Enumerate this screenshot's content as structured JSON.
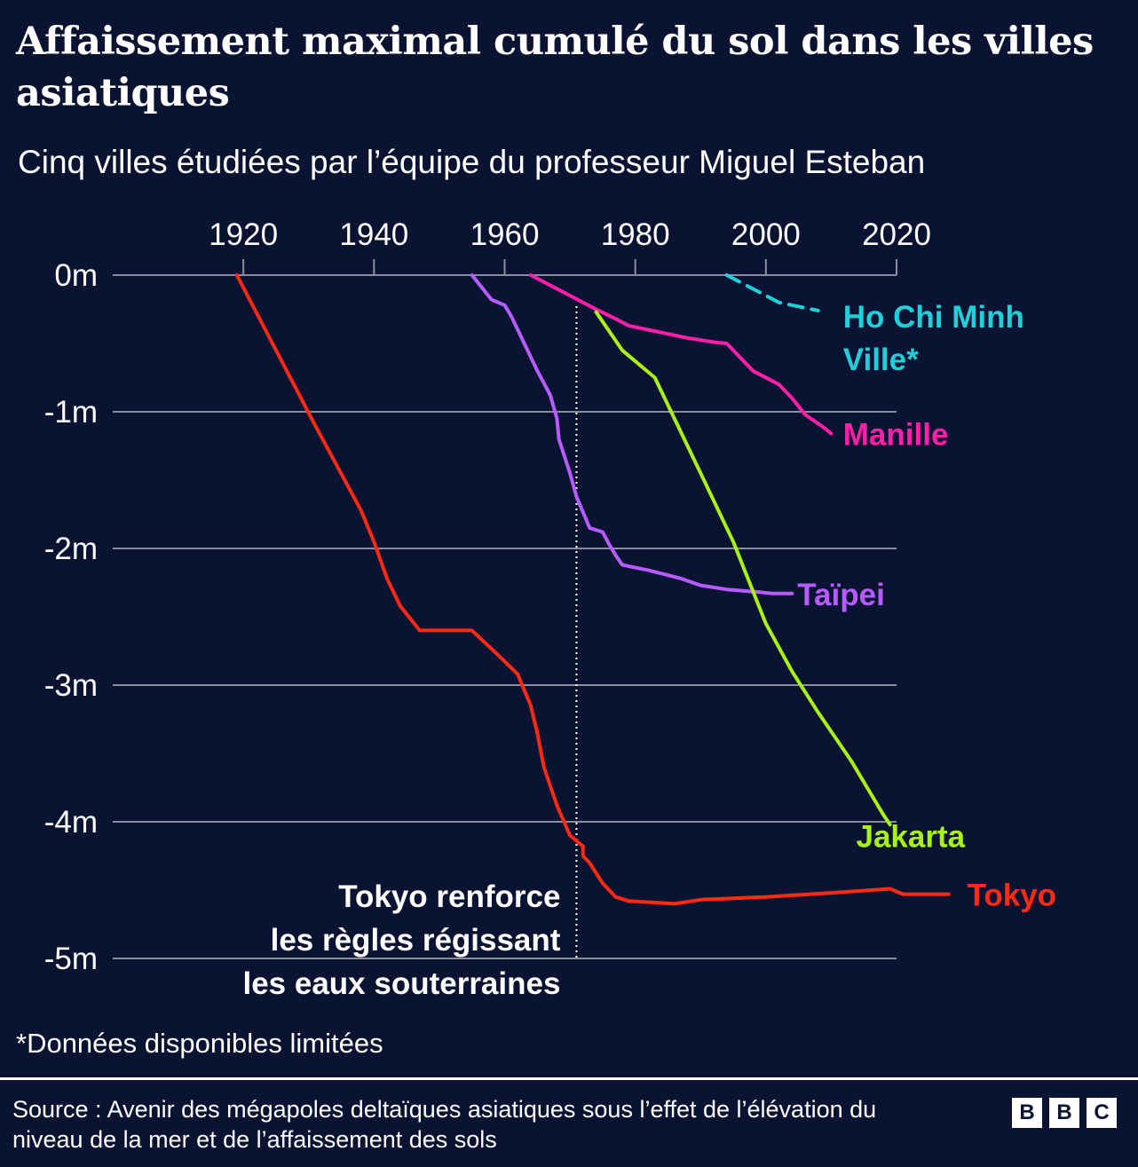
{
  "title": "Affaissement maximal cumulé du sol dans les villes asiatiques",
  "subtitle": "Cinq villes étudiées par l’équipe du professeur Miguel Esteban",
  "footnote": "*Données disponibles limitées",
  "source": "Source : Avenir des mégapoles deltaïques asiatiques sous l’effet de l’élévation du niveau de la mer et de l’affaissement des sols",
  "brand": [
    "B",
    "B",
    "C"
  ],
  "colors": {
    "background": "#0a1432",
    "grid": "#8a8f9e",
    "text": "#ffffff",
    "tokyo": "#ff2a14",
    "taipei": "#b65cff",
    "manille": "#ff1fa8",
    "jakarta": "#a8f21a",
    "hcm": "#1fd0da"
  },
  "chart_data": {
    "type": "line",
    "xlim": [
      1920,
      2020
    ],
    "ylim": [
      -5,
      0
    ],
    "x_ticks": [
      1920,
      1940,
      1960,
      1980,
      2000,
      2020
    ],
    "x_tick_labels": [
      "1920",
      "1940",
      "1960",
      "1980",
      "2000",
      "2020"
    ],
    "y_ticks": [
      0,
      -1,
      -2,
      -3,
      -4,
      -5
    ],
    "y_tick_labels": [
      "0m",
      "-1m",
      "-2m",
      "-3m",
      "-4m",
      "-5m"
    ],
    "grid": true,
    "annotation": {
      "x": 1971,
      "lines": [
        "Tokyo renforce",
        "les règles régissant",
        "les eaux souterraines"
      ]
    },
    "series": [
      {
        "name": "Tokyo",
        "color_key": "tokyo",
        "dashed": false,
        "label_lines": [
          "Tokyo"
        ],
        "points": [
          [
            1919,
            0
          ],
          [
            1925,
            -0.55
          ],
          [
            1931,
            -1.1
          ],
          [
            1938,
            -1.72
          ],
          [
            1940,
            -1.95
          ],
          [
            1942,
            -2.22
          ],
          [
            1944,
            -2.42
          ],
          [
            1947,
            -2.6
          ],
          [
            1955,
            -2.6
          ],
          [
            1959,
            -2.78
          ],
          [
            1962,
            -2.92
          ],
          [
            1964,
            -3.15
          ],
          [
            1965,
            -3.35
          ],
          [
            1966,
            -3.6
          ],
          [
            1968,
            -3.88
          ],
          [
            1970,
            -4.1
          ],
          [
            1972,
            -4.18
          ],
          [
            1972,
            -4.25
          ],
          [
            1973,
            -4.3
          ],
          [
            1975,
            -4.45
          ],
          [
            1977,
            -4.55
          ],
          [
            1979,
            -4.58
          ],
          [
            1986,
            -4.6
          ],
          [
            1990,
            -4.57
          ],
          [
            2000,
            -4.55
          ],
          [
            2010,
            -4.52
          ],
          [
            2019,
            -4.49
          ],
          [
            2021,
            -4.53
          ],
          [
            2028,
            -4.53
          ]
        ],
        "label_pos": [
          2030,
          -4.53
        ]
      },
      {
        "name": "Taïpei",
        "color_key": "taipei",
        "dashed": false,
        "label_lines": [
          "Taïpei"
        ],
        "points": [
          [
            1955,
            0
          ],
          [
            1957,
            -0.12
          ],
          [
            1958,
            -0.18
          ],
          [
            1960,
            -0.22
          ],
          [
            1961,
            -0.3
          ],
          [
            1963,
            -0.5
          ],
          [
            1965,
            -0.7
          ],
          [
            1967,
            -0.88
          ],
          [
            1968,
            -1.05
          ],
          [
            1968.3,
            -1.2
          ],
          [
            1970,
            -1.45
          ],
          [
            1971,
            -1.62
          ],
          [
            1973,
            -1.85
          ],
          [
            1975,
            -1.88
          ],
          [
            1976,
            -1.97
          ],
          [
            1977,
            -2.05
          ],
          [
            1978,
            -2.12
          ],
          [
            1982,
            -2.16
          ],
          [
            1987,
            -2.22
          ],
          [
            1990,
            -2.27
          ],
          [
            1994,
            -2.3
          ],
          [
            1999,
            -2.32
          ],
          [
            2001,
            -2.33
          ],
          [
            2004,
            -2.33
          ]
        ],
        "label_pos": [
          2004,
          -2.33
        ]
      },
      {
        "name": "Manille",
        "color_key": "manille",
        "dashed": false,
        "label_lines": [
          "Manille"
        ],
        "points": [
          [
            1964,
            0
          ],
          [
            1970,
            -0.15
          ],
          [
            1974,
            -0.25
          ],
          [
            1977,
            -0.32
          ],
          [
            1979,
            -0.37
          ],
          [
            1984,
            -0.42
          ],
          [
            1988,
            -0.46
          ],
          [
            1992,
            -0.49
          ],
          [
            1994,
            -0.5
          ],
          [
            1996,
            -0.6
          ],
          [
            1998,
            -0.7
          ],
          [
            2002,
            -0.8
          ],
          [
            2004,
            -0.9
          ],
          [
            2006,
            -1.02
          ],
          [
            2009,
            -1.12
          ],
          [
            2010,
            -1.16
          ]
        ],
        "label_pos": [
          2011,
          -1.16
        ]
      },
      {
        "name": "Jakarta",
        "color_key": "jakarta",
        "dashed": false,
        "label_lines": [
          "Jakarta"
        ],
        "points": [
          [
            1974,
            -0.27
          ],
          [
            1978,
            -0.55
          ],
          [
            1983,
            -0.75
          ],
          [
            1986,
            -1.05
          ],
          [
            1990,
            -1.45
          ],
          [
            1995,
            -1.95
          ],
          [
            2000,
            -2.55
          ],
          [
            2004,
            -2.9
          ],
          [
            2008,
            -3.2
          ],
          [
            2013,
            -3.55
          ],
          [
            2018,
            -3.95
          ],
          [
            2019,
            -4.02
          ]
        ],
        "label_pos": [
          2013,
          -4.1
        ]
      },
      {
        "name": "Ho Chi Minh Ville*",
        "color_key": "hcm",
        "dashed": true,
        "label_lines": [
          "Ho Chi Minh",
          "Ville*"
        ],
        "points": [
          [
            1994,
            0
          ],
          [
            2002,
            -0.2
          ],
          [
            2008,
            -0.26
          ]
        ],
        "label_pos": [
          2011,
          -0.3
        ]
      }
    ]
  }
}
